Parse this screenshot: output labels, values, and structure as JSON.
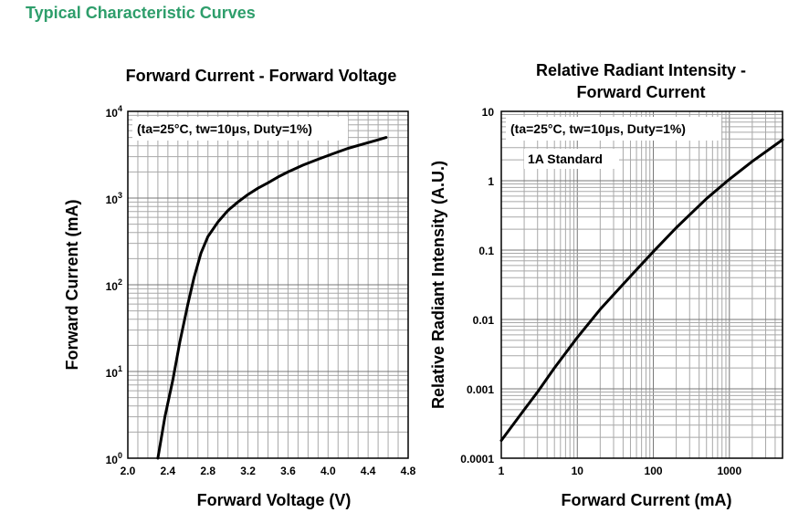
{
  "page": {
    "title": "Typical Characteristic Curves"
  },
  "chart_data": [
    {
      "type": "line",
      "title": "Forward Current - Forward Voltage",
      "xlabel": "Forward Voltage (V)",
      "ylabel": "Forward Current (mA)",
      "xlim": [
        2.0,
        4.8
      ],
      "ylim": [
        1,
        10000
      ],
      "yscale": "log",
      "grid": true,
      "annotation": "(ta=25°C, tw=10μs, Duty=1%)",
      "xticks": [
        {
          "value": 2.0,
          "label": "2.0"
        },
        {
          "value": 2.4,
          "label": "2.4"
        },
        {
          "value": 2.8,
          "label": "2.8"
        },
        {
          "value": 3.2,
          "label": "3.2"
        },
        {
          "value": 3.6,
          "label": "3.6"
        },
        {
          "value": 4.0,
          "label": "4.0"
        },
        {
          "value": 4.4,
          "label": "4.4"
        },
        {
          "value": 4.8,
          "label": "4.8"
        }
      ],
      "yticks": [
        {
          "value": 1,
          "base": "10",
          "exp": "0"
        },
        {
          "value": 10,
          "base": "10",
          "exp": "1"
        },
        {
          "value": 100,
          "base": "10",
          "exp": "2"
        },
        {
          "value": 1000,
          "base": "10",
          "exp": "3"
        },
        {
          "value": 10000,
          "base": "10",
          "exp": "4"
        }
      ],
      "series": [
        {
          "x": [
            2.3,
            2.37,
            2.45,
            2.52,
            2.6,
            2.66,
            2.73,
            2.8,
            2.9,
            3.0,
            3.1,
            3.2,
            3.3,
            3.4,
            3.5,
            3.6,
            3.75,
            3.9,
            4.05,
            4.2,
            4.35,
            4.5,
            4.58
          ],
          "y": [
            1,
            3,
            8,
            22,
            60,
            120,
            230,
            360,
            530,
            720,
            900,
            1100,
            1300,
            1500,
            1750,
            2000,
            2400,
            2800,
            3250,
            3750,
            4200,
            4700,
            5000
          ]
        }
      ]
    },
    {
      "type": "line",
      "title": "Relative Radiant Intensity - Forward Current",
      "title_lines": [
        "Relative Radiant Intensity -",
        "Forward Current"
      ],
      "xlabel": "Forward Current (mA)",
      "ylabel": "Relative Radiant Intensity (A.U.)",
      "xlim": [
        1,
        5000
      ],
      "ylim": [
        0.0001,
        10
      ],
      "xscale": "log",
      "yscale": "log",
      "grid": true,
      "annotation": "(ta=25°C, tw=10μs, Duty=1%)",
      "annotation2": "1A Standard",
      "xticks": [
        {
          "value": 1,
          "label": "1"
        },
        {
          "value": 10,
          "label": "10"
        },
        {
          "value": 100,
          "label": "100"
        },
        {
          "value": 1000,
          "label": "1000"
        }
      ],
      "yticks": [
        {
          "value": 0.0001,
          "label": "0.0001"
        },
        {
          "value": 0.001,
          "label": "0.001"
        },
        {
          "value": 0.01,
          "label": "0.01"
        },
        {
          "value": 0.1,
          "label": "0.1"
        },
        {
          "value": 1,
          "label": "1"
        },
        {
          "value": 10,
          "label": "10"
        }
      ],
      "series": [
        {
          "x": [
            1,
            2,
            3,
            5,
            10,
            20,
            50,
            100,
            200,
            500,
            1000,
            2000,
            5000
          ],
          "y": [
            0.00018,
            0.0005,
            0.0009,
            0.002,
            0.0055,
            0.014,
            0.042,
            0.095,
            0.21,
            0.55,
            1.05,
            1.9,
            3.9
          ]
        }
      ]
    }
  ]
}
